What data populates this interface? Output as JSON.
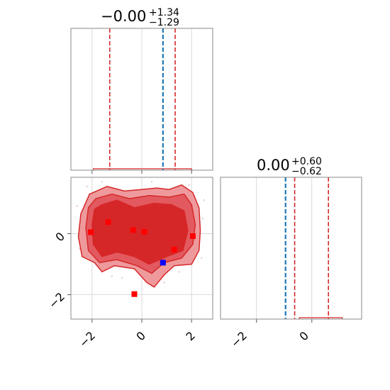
{
  "chart_data": [
    {
      "panel": "marginal-top-left",
      "type": "line",
      "title": {
        "main": "−0.00",
        "sup": "+1.34",
        "sub": "−1.29"
      },
      "xlim": [
        -2.85,
        2.85
      ],
      "grid": true,
      "x_ticks": [
        -2,
        0,
        2
      ],
      "x_tick_labels_shown": false,
      "quantile_lines": [
        {
          "x": -1.29,
          "color": "#d62728",
          "style": "dashed"
        },
        {
          "x": 1.34,
          "color": "#d62728",
          "style": "dashed"
        }
      ],
      "truth_line": {
        "x": 0.85,
        "color": "#1f77b4",
        "style": "dashed"
      },
      "histogram": {
        "x_start": -1.95,
        "x_end": 2.0,
        "level": 0.01,
        "color": "#d62728"
      }
    },
    {
      "panel": "marginal-bottom-right",
      "type": "line",
      "title": {
        "main": "0.00",
        "sup": "+0.60",
        "sub": "−0.62"
      },
      "xlim": [
        -3.3,
        1.8
      ],
      "grid": true,
      "x_ticks": [
        -2,
        0
      ],
      "x_tick_labels": [
        "−2",
        "0"
      ],
      "quantile_lines": [
        {
          "x": -0.62,
          "color": "#d62728",
          "style": "dashed"
        },
        {
          "x": 0.6,
          "color": "#d62728",
          "style": "dashed"
        }
      ],
      "truth_line": {
        "x": -0.95,
        "color": "#1f77b4",
        "style": "dashed"
      },
      "histogram": {
        "x_start": -0.45,
        "x_end": 1.1,
        "level": 0.01,
        "color": "#d62728"
      }
    },
    {
      "panel": "joint-2d",
      "type": "scatter",
      "xlim": [
        -2.85,
        2.85
      ],
      "ylim": [
        -2.8,
        1.85
      ],
      "grid": true,
      "x_ticks": [
        -2,
        0,
        2
      ],
      "x_tick_labels": [
        "−2",
        "0",
        "2"
      ],
      "y_ticks": [
        -2,
        0
      ],
      "y_tick_labels": [
        "−2",
        "0"
      ],
      "contours": [
        {
          "level": "outer",
          "fill": "#ee9a9d",
          "stroke": "#d62728",
          "outline": [
            [
              -2.1,
              1.3
            ],
            [
              -1.4,
              1.55
            ],
            [
              -0.7,
              1.4
            ],
            [
              0.0,
              1.45
            ],
            [
              0.6,
              1.5
            ],
            [
              1.1,
              1.45
            ],
            [
              1.6,
              1.6
            ],
            [
              2.05,
              1.35
            ],
            [
              2.3,
              0.85
            ],
            [
              2.35,
              0.1
            ],
            [
              2.3,
              -0.55
            ],
            [
              2.0,
              -1.0
            ],
            [
              1.3,
              -1.05
            ],
            [
              0.9,
              -1.35
            ],
            [
              0.5,
              -1.75
            ],
            [
              0.2,
              -1.6
            ],
            [
              -0.3,
              -1.15
            ],
            [
              -1.1,
              -1.05
            ],
            [
              -1.6,
              -1.25
            ],
            [
              -1.9,
              -0.95
            ],
            [
              -2.4,
              -0.75
            ],
            [
              -2.55,
              -0.1
            ],
            [
              -2.45,
              0.65
            ]
          ]
        },
        {
          "level": "middle",
          "fill": "#e25a5f",
          "stroke": "#d62728",
          "outline": [
            [
              -1.85,
              1.15
            ],
            [
              -1.2,
              1.3
            ],
            [
              -0.5,
              1.15
            ],
            [
              0.3,
              1.25
            ],
            [
              1.1,
              1.2
            ],
            [
              1.7,
              1.3
            ],
            [
              2.0,
              0.95
            ],
            [
              2.15,
              0.3
            ],
            [
              2.05,
              -0.35
            ],
            [
              1.6,
              -0.8
            ],
            [
              0.9,
              -0.95
            ],
            [
              0.4,
              -1.3
            ],
            [
              -0.2,
              -1.05
            ],
            [
              -1.0,
              -0.85
            ],
            [
              -1.7,
              -0.95
            ],
            [
              -2.15,
              -0.55
            ],
            [
              -2.25,
              0.2
            ],
            [
              -2.15,
              0.85
            ]
          ]
        },
        {
          "level": "inner",
          "fill": "#d62728",
          "stroke": "#d62728",
          "outline": [
            [
              -1.6,
              0.95
            ],
            [
              -1.0,
              1.1
            ],
            [
              -0.3,
              0.85
            ],
            [
              0.5,
              1.0
            ],
            [
              1.2,
              0.95
            ],
            [
              1.7,
              0.75
            ],
            [
              1.85,
              0.1
            ],
            [
              1.65,
              -0.55
            ],
            [
              1.0,
              -0.75
            ],
            [
              0.3,
              -1.0
            ],
            [
              -0.3,
              -0.75
            ],
            [
              -1.0,
              -0.6
            ],
            [
              -1.6,
              -0.75
            ],
            [
              -1.95,
              -0.35
            ],
            [
              -2.0,
              0.3
            ],
            [
              -1.9,
              0.8
            ]
          ]
        }
      ],
      "samples_red": [
        [
          -2.05,
          0.05
        ],
        [
          -1.35,
          0.38
        ],
        [
          -0.35,
          0.12
        ],
        [
          0.1,
          0.06
        ],
        [
          1.3,
          -0.52
        ],
        [
          2.05,
          -0.08
        ],
        [
          -0.3,
          -1.98
        ]
      ],
      "sample_blue": [
        0.85,
        -0.95
      ]
    }
  ]
}
